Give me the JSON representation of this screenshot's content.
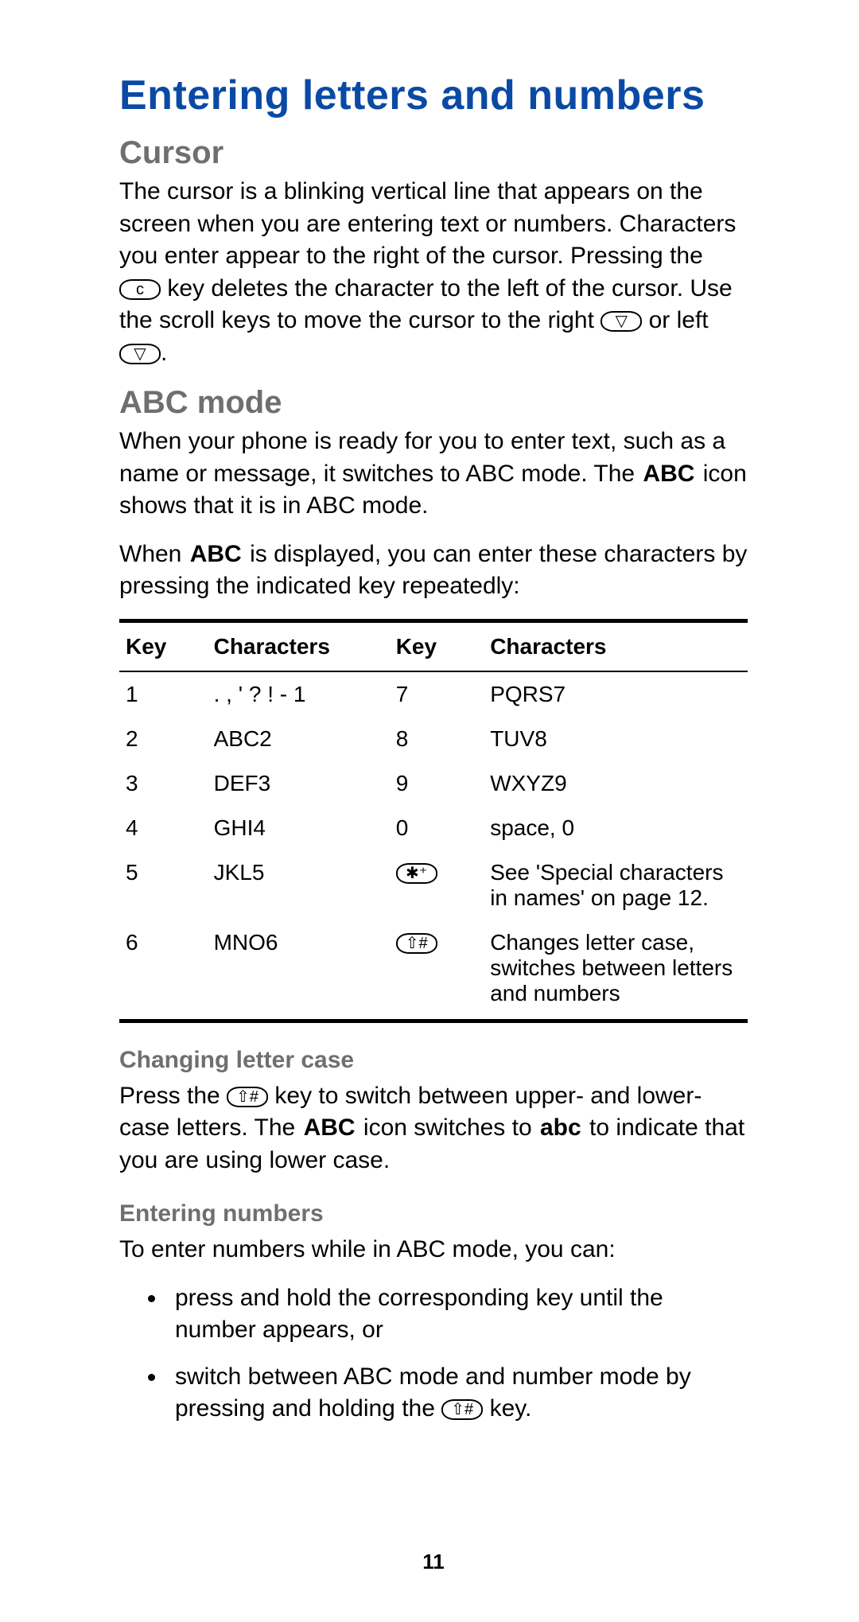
{
  "page_number": "11",
  "colors": {
    "heading_blue": "#0a4aa5",
    "subheading_grey": "#6f6f6f",
    "text": "#000000",
    "background": "#ffffff"
  },
  "heading": "Entering letters and numbers",
  "cursor": {
    "title": "Cursor",
    "para_parts": {
      "p1": "The cursor is a blinking vertical line that appears on the screen when you are entering text or numbers. Characters you enter appear to the right of the cursor. Pressing the ",
      "key1_label": "c",
      "p2": " key deletes the character to the left of the cursor. Use the scroll keys to move the cursor to the right ",
      "key2_label": "▽",
      "p3": " or left ",
      "key3_label": "▽",
      "p4": "."
    }
  },
  "abc": {
    "title": "ABC mode",
    "para1_parts": {
      "p1": "When your phone is ready for you to enter text, such as a name or message, it switches to ABC mode. The ",
      "icon1": "ABC",
      "p2": " icon shows that it is in ABC mode."
    },
    "para2_parts": {
      "p1": "When ",
      "icon1": "ABC",
      "p2": " is displayed, you can enter these characters by pressing the indicated key repeatedly:"
    }
  },
  "table": {
    "headers": {
      "h1": "Key",
      "h2": "Characters",
      "h3": "Key",
      "h4": "Characters"
    },
    "rows": [
      {
        "k1": "1",
        "c1": ". , ' ? ! - 1",
        "k2": "7",
        "c2": "PQRS7",
        "k2_is_icon": false
      },
      {
        "k1": "2",
        "c1": "ABC2",
        "k2": "8",
        "c2": "TUV8",
        "k2_is_icon": false
      },
      {
        "k1": "3",
        "c1": "DEF3",
        "k2": "9",
        "c2": "WXYZ9",
        "k2_is_icon": false
      },
      {
        "k1": "4",
        "c1": "GHI4",
        "k2": "0",
        "c2": "space, 0",
        "k2_is_icon": false
      },
      {
        "k1": "5",
        "c1": "JKL5",
        "k2": "✱⁺",
        "c2": "See 'Special characters in names' on page 12.",
        "k2_is_icon": true
      },
      {
        "k1": "6",
        "c1": "MNO6",
        "k2": "⇧#",
        "c2": "Changes letter case, switches between letters and numbers",
        "k2_is_icon": true
      }
    ]
  },
  "changing_case": {
    "title": "Changing letter case",
    "parts": {
      "p1": "Press the ",
      "key_label": "⇧#",
      "p2": " key to switch between upper- and lower-case letters. The ",
      "icon_upper": "ABC",
      "p3": " icon switches to ",
      "icon_lower": "abc",
      "p4": " to indicate that you are using lower case."
    }
  },
  "entering_numbers": {
    "title": "Entering numbers",
    "intro": "To enter numbers while in ABC mode, you can:",
    "bullet1": "press and hold the corresponding key until the number appears, or",
    "bullet2_parts": {
      "p1": "switch between ABC mode and number mode by pressing and holding the ",
      "key_label": "⇧#",
      "p2": " key."
    }
  }
}
